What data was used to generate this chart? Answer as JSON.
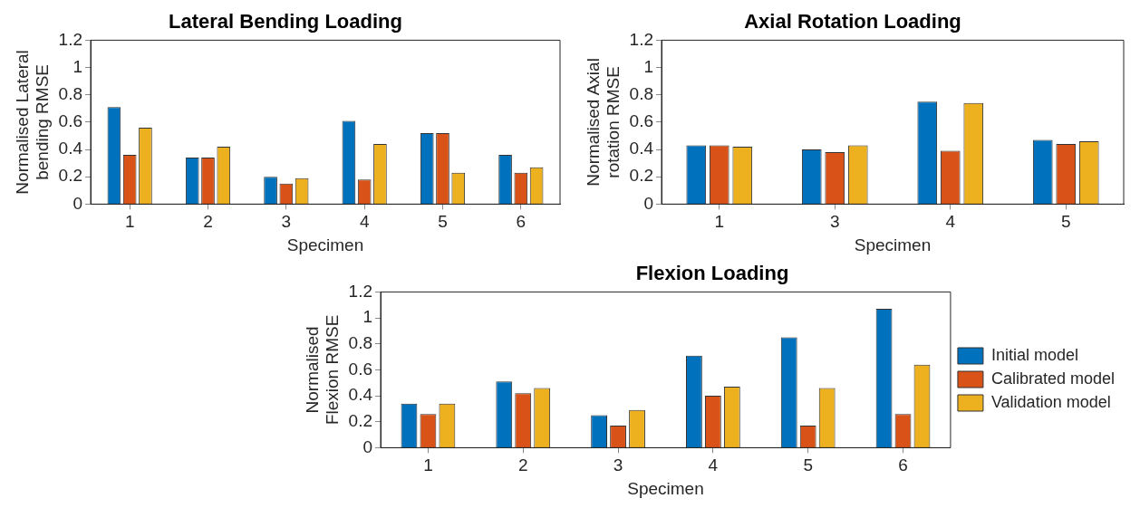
{
  "chart_data": [
    {
      "type": "bar",
      "title": "Lateral Bending Loading",
      "xlabel": "Specimen",
      "ylabel": "Normalised Lateral\nbending RMSE",
      "categories": [
        "1",
        "2",
        "3",
        "4",
        "5",
        "6"
      ],
      "series": [
        {
          "color": "#0072bd",
          "values": [
            0.71,
            0.34,
            0.2,
            0.61,
            0.52,
            0.36
          ]
        },
        {
          "color": "#d95319",
          "values": [
            0.36,
            0.34,
            0.15,
            0.18,
            0.52,
            0.23
          ]
        },
        {
          "color": "#edb120",
          "values": [
            0.56,
            0.42,
            0.19,
            0.44,
            0.23,
            0.27
          ]
        }
      ],
      "ylim": [
        0,
        1.2
      ],
      "yticks": [
        0,
        0.2,
        0.4,
        0.6,
        0.8,
        1,
        1.2
      ],
      "grid": false,
      "legend": false
    },
    {
      "type": "bar",
      "title": "Axial Rotation Loading",
      "xlabel": "Specimen",
      "ylabel": "Normalised Axial\nrotation RMSE",
      "categories": [
        "1",
        "3",
        "4",
        "5"
      ],
      "series": [
        {
          "color": "#0072bd",
          "values": [
            0.43,
            0.4,
            0.75,
            0.47
          ]
        },
        {
          "color": "#d95319",
          "values": [
            0.43,
            0.38,
            0.39,
            0.44
          ]
        },
        {
          "color": "#edb120",
          "values": [
            0.42,
            0.43,
            0.74,
            0.46
          ]
        }
      ],
      "ylim": [
        0,
        1.2
      ],
      "yticks": [
        0,
        0.2,
        0.4,
        0.6,
        0.8,
        1,
        1.2
      ],
      "grid": false,
      "legend": false
    },
    {
      "type": "bar",
      "title": "Flexion Loading",
      "xlabel": "Specimen",
      "ylabel": "Normalised\nFlexion RMSE",
      "categories": [
        "1",
        "2",
        "3",
        "4",
        "5",
        "6"
      ],
      "series": [
        {
          "name": "Initial model",
          "color": "#0072bd",
          "values": [
            0.34,
            0.51,
            0.25,
            0.71,
            0.85,
            1.07
          ]
        },
        {
          "name": "Calibrated model",
          "color": "#d95319",
          "values": [
            0.26,
            0.42,
            0.17,
            0.4,
            0.17,
            0.26
          ]
        },
        {
          "name": "Validation model",
          "color": "#edb120",
          "values": [
            0.34,
            0.46,
            0.29,
            0.47,
            0.46,
            0.64
          ]
        }
      ],
      "ylim": [
        0,
        1.2
      ],
      "yticks": [
        0,
        0.2,
        0.4,
        0.6,
        0.8,
        1,
        1.2
      ],
      "grid": false,
      "legend": "right"
    }
  ]
}
